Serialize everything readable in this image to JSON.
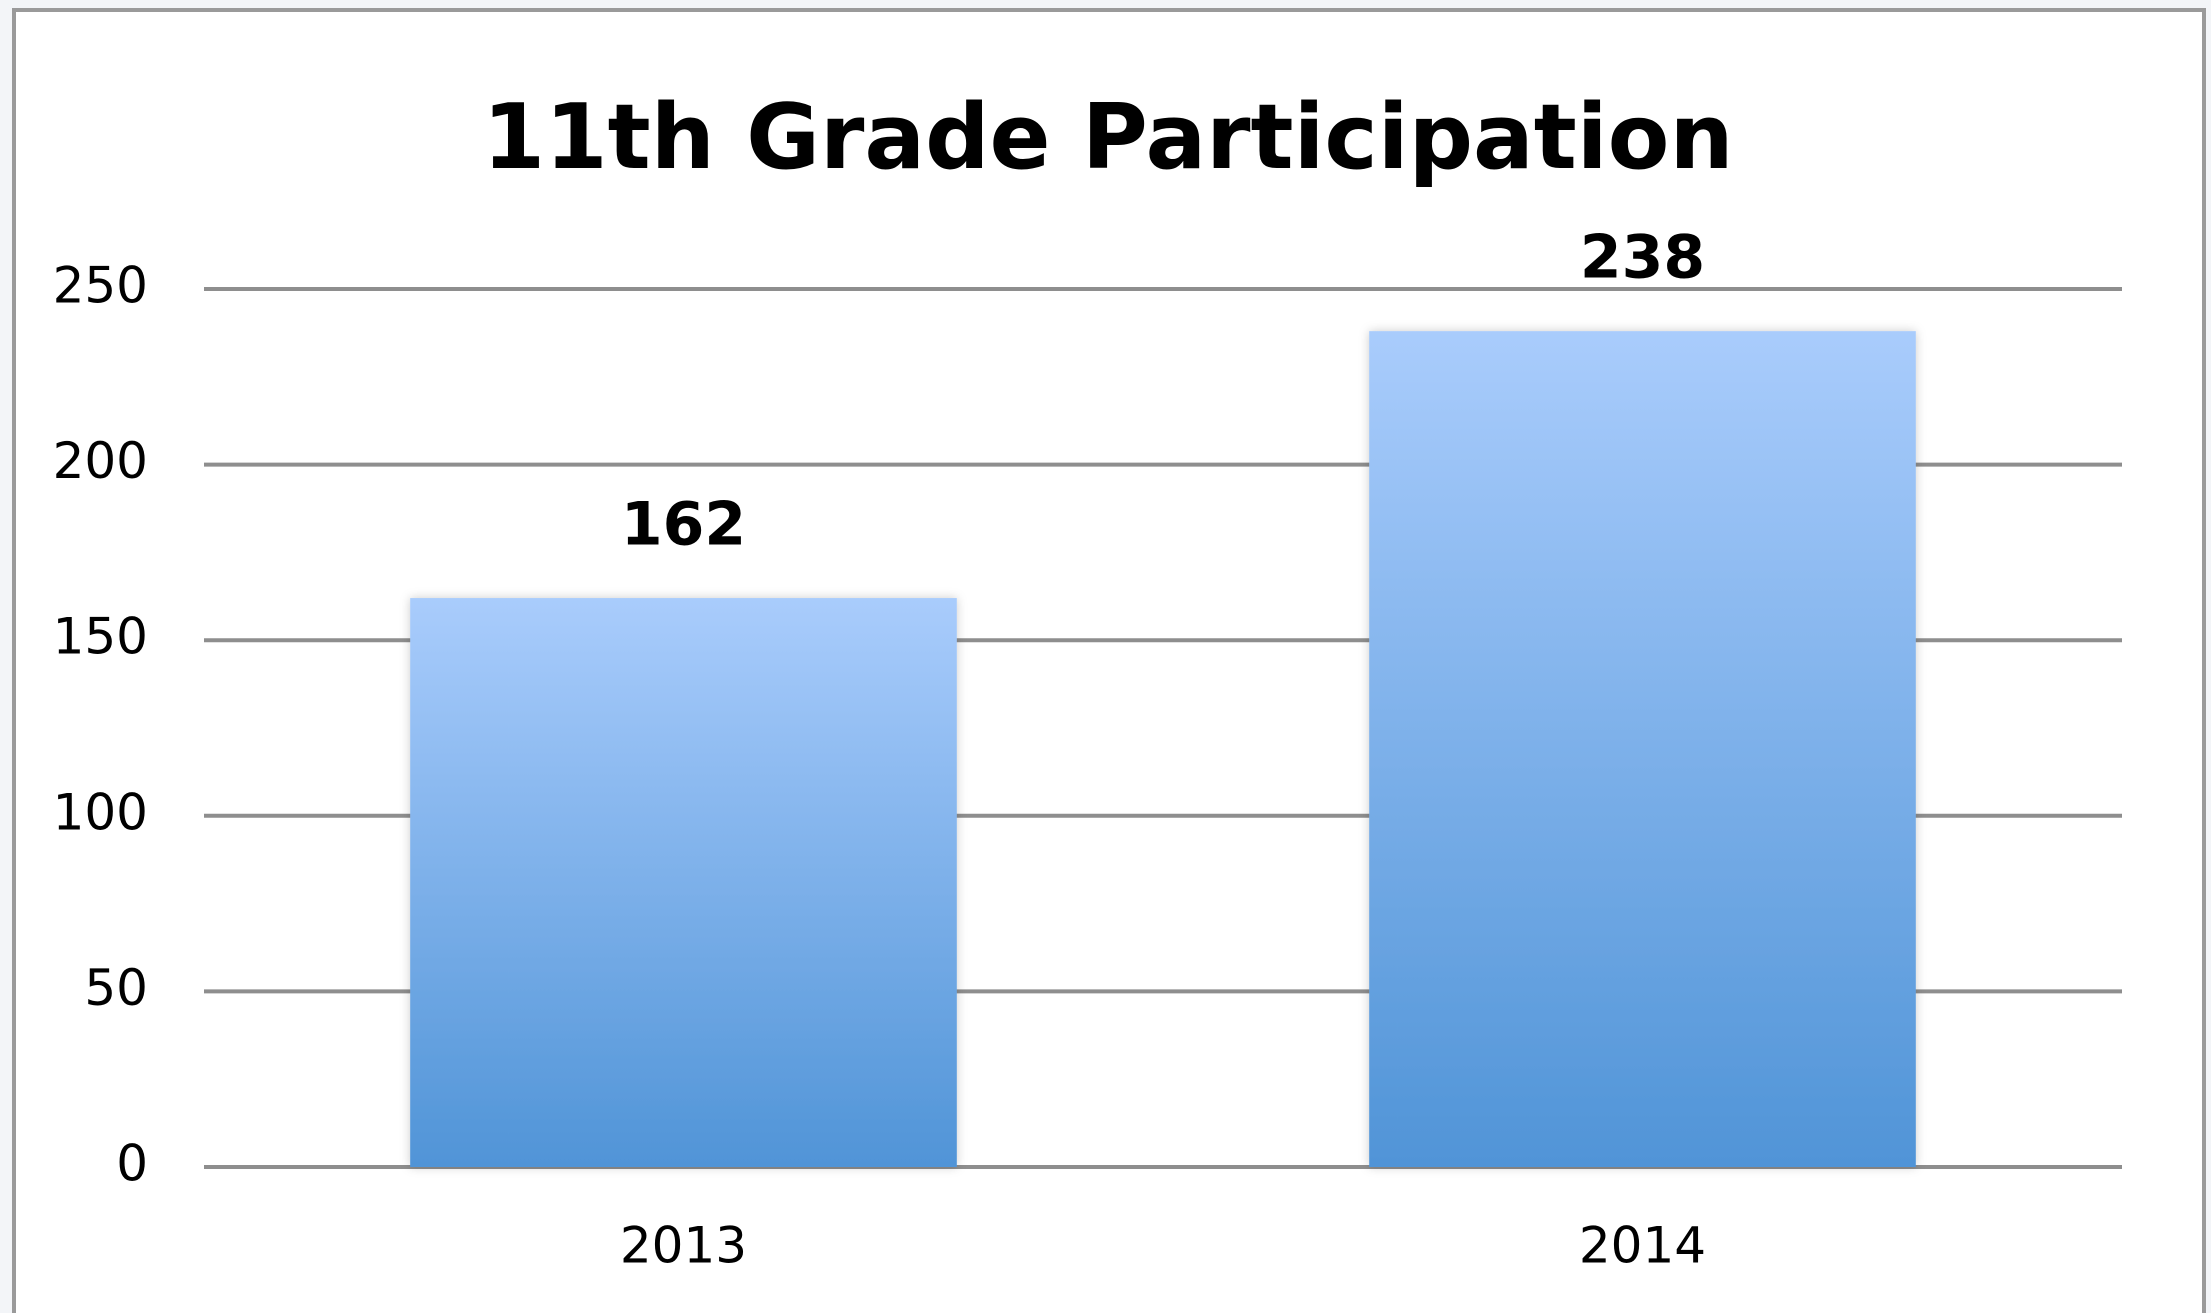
{
  "chart_data": {
    "type": "bar",
    "title": "11th Grade Participation",
    "categories": [
      "2013",
      "2014"
    ],
    "values": [
      162,
      238
    ],
    "color": "#5094d7",
    "color_top": "#a9ccfc",
    "ylim": [
      0,
      250
    ],
    "yticks": [
      0,
      50,
      100,
      150,
      200,
      250
    ],
    "grid": true
  }
}
